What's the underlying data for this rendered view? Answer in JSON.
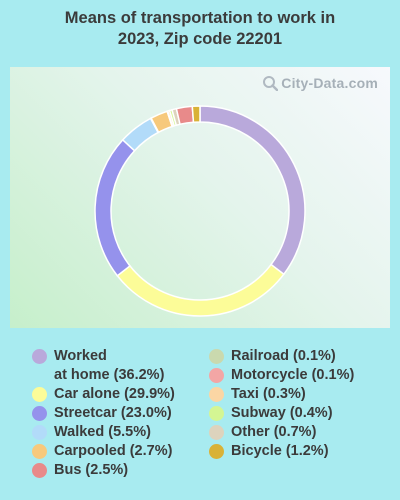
{
  "title_line1": "Means of transportation to work in",
  "title_line2": "2023, Zip code 22201",
  "watermark": "City-Data.com",
  "chart_data": {
    "type": "pie",
    "style": "donut",
    "title": "Means of transportation to work in 2023, Zip code 22201",
    "series": [
      {
        "name": "Worked at home",
        "value": 36.2,
        "label": "Worked at home (36.2%)",
        "color": "#b9a9db"
      },
      {
        "name": "Car alone",
        "value": 29.9,
        "label": "Car alone (29.9%)",
        "color": "#fcfc98"
      },
      {
        "name": "Streetcar",
        "value": 23.0,
        "label": "Streetcar (23.0%)",
        "color": "#9592ec"
      },
      {
        "name": "Walked",
        "value": 5.5,
        "label": "Walked (5.5%)",
        "color": "#b2dbf9"
      },
      {
        "name": "Railroad",
        "value": 0.1,
        "label": "Railroad (0.1%)",
        "color": "#cad9ae"
      },
      {
        "name": "Carpooled",
        "value": 2.7,
        "label": "Carpooled (2.7%)",
        "color": "#f7c97c"
      },
      {
        "name": "Motorcycle",
        "value": 0.1,
        "label": "Motorcycle (0.1%)",
        "color": "#f3a6a5"
      },
      {
        "name": "Taxi",
        "value": 0.3,
        "label": "Taxi (0.3%)",
        "color": "#fbd6a4"
      },
      {
        "name": "Subway",
        "value": 0.4,
        "label": "Subway (0.4%)",
        "color": "#d4f693"
      },
      {
        "name": "Other",
        "value": 0.7,
        "label": "Other (0.7%)",
        "color": "#ddd3bd"
      },
      {
        "name": "Bus",
        "value": 2.5,
        "label": "Bus (2.5%)",
        "color": "#e88a8a"
      },
      {
        "name": "Bicycle",
        "value": 1.2,
        "label": "Bicycle (1.2%)",
        "color": "#d9b237"
      }
    ],
    "legend_left": [
      "Worked at home",
      "Car alone",
      "Streetcar",
      "Walked",
      "Carpooled",
      "Bus"
    ],
    "legend_right": [
      "Railroad",
      "Motorcycle",
      "Taxi",
      "Subway",
      "Other",
      "Bicycle"
    ]
  }
}
